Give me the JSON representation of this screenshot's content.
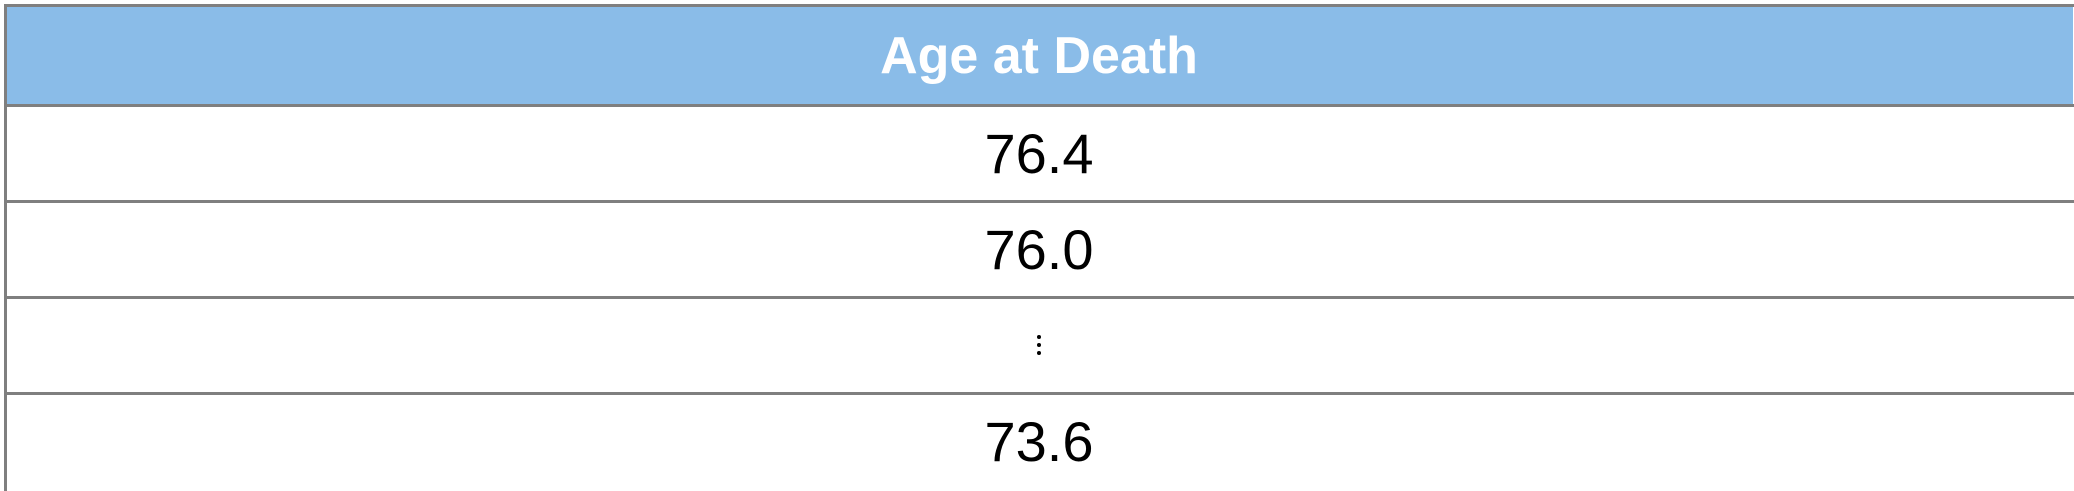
{
  "table": {
    "header": "Age at Death",
    "rows": [
      {
        "value": "76.4"
      },
      {
        "value": "76.0"
      },
      {
        "value": "⋮"
      },
      {
        "value": "73.6"
      }
    ]
  },
  "colors": {
    "header_bg": "#8abce8",
    "header_text": "#ffffff",
    "border": "#7f7f7f"
  }
}
